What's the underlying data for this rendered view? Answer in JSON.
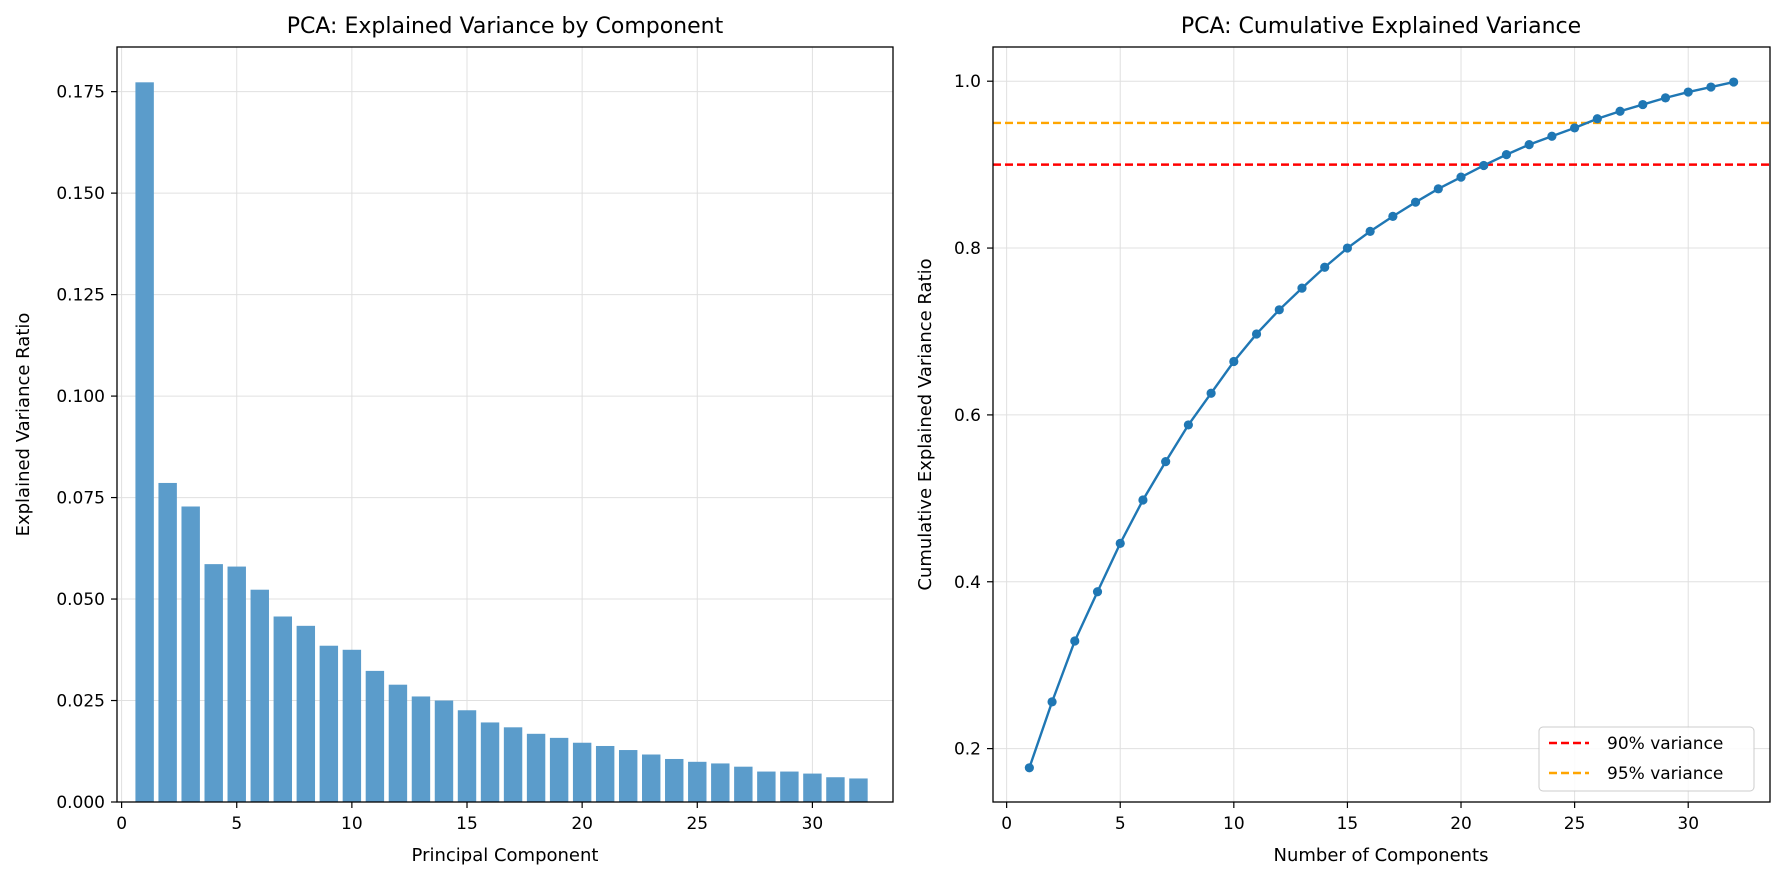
{
  "chart_data": [
    {
      "type": "bar",
      "title": "PCA: Explained Variance by Component",
      "xlabel": "Principal Component",
      "ylabel": "Explained Variance Ratio",
      "xlim": [
        -0.2,
        33.5
      ],
      "ylim": [
        0,
        0.186
      ],
      "xticks": [
        0,
        5,
        10,
        15,
        20,
        25,
        30
      ],
      "yticks": [
        0.0,
        0.025,
        0.05,
        0.075,
        0.1,
        0.125,
        0.15,
        0.175
      ],
      "ytick_labels": [
        "0.000",
        "0.025",
        "0.050",
        "0.075",
        "0.100",
        "0.125",
        "0.150",
        "0.175"
      ],
      "grid": true,
      "bar_color": "#5b9ccb",
      "x": [
        1,
        2,
        3,
        4,
        5,
        6,
        7,
        8,
        9,
        10,
        11,
        12,
        13,
        14,
        15,
        16,
        17,
        18,
        19,
        20,
        21,
        22,
        23,
        24,
        25,
        26,
        27,
        28,
        29,
        30,
        31,
        32
      ],
      "values": [
        0.1773,
        0.0786,
        0.0728,
        0.0586,
        0.058,
        0.0523,
        0.0457,
        0.0434,
        0.0385,
        0.0375,
        0.0323,
        0.0289,
        0.026,
        0.025,
        0.0226,
        0.0196,
        0.0184,
        0.0168,
        0.0158,
        0.0146,
        0.0138,
        0.0128,
        0.0117,
        0.0106,
        0.0099,
        0.0095,
        0.0087,
        0.0075,
        0.0075,
        0.007,
        0.0061,
        0.0058
      ]
    },
    {
      "type": "line",
      "title": "PCA: Cumulative Explained Variance",
      "xlabel": "Number of Components",
      "ylabel": "Cumulative Explained Variance Ratio",
      "xlim": [
        -0.6,
        33.6
      ],
      "ylim": [
        0.136,
        1.041
      ],
      "xticks": [
        0,
        5,
        10,
        15,
        20,
        25,
        30
      ],
      "yticks": [
        0.2,
        0.4,
        0.6,
        0.8,
        1.0
      ],
      "ytick_labels": [
        "0.2",
        "0.4",
        "0.6",
        "0.8",
        "1.0"
      ],
      "grid": true,
      "legend_position": "lower-right",
      "series": [
        {
          "color": "#1f77b4",
          "x": [
            1,
            2,
            3,
            4,
            5,
            6,
            7,
            8,
            9,
            10,
            11,
            12,
            13,
            14,
            15,
            16,
            17,
            18,
            19,
            20,
            21,
            22,
            23,
            24,
            25,
            26,
            27,
            28,
            29,
            30,
            31,
            32
          ],
          "values": [
            0.177,
            0.256,
            0.329,
            0.388,
            0.446,
            0.498,
            0.544,
            0.588,
            0.626,
            0.664,
            0.697,
            0.726,
            0.752,
            0.777,
            0.8,
            0.82,
            0.838,
            0.855,
            0.871,
            0.885,
            0.899,
            0.912,
            0.924,
            0.934,
            0.944,
            0.955,
            0.964,
            0.972,
            0.98,
            0.987,
            0.993,
            0.999
          ]
        }
      ],
      "reference_lines": [
        {
          "name": "90% variance",
          "y": 0.9,
          "color": "#ff0000"
        },
        {
          "name": "95% variance",
          "y": 0.95,
          "color": "#ffa500"
        }
      ]
    }
  ]
}
